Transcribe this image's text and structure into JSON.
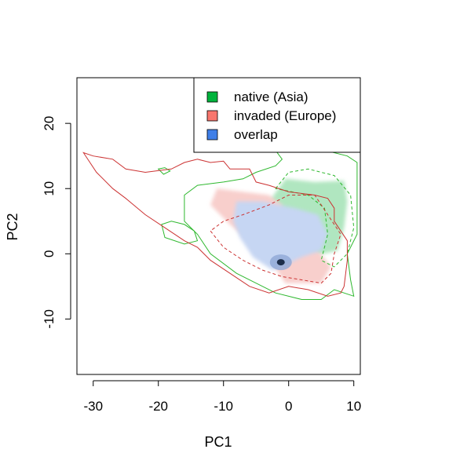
{
  "chart_data": {
    "type": "heatmap",
    "xlabel": "PC1",
    "ylabel": "PC2",
    "xlim": [
      -32.5,
      11
    ],
    "ylim": [
      -18.5,
      27
    ],
    "xticks": [
      -30,
      -20,
      -10,
      0,
      10
    ],
    "yticks": [
      -10,
      0,
      10,
      20
    ],
    "tick_labels_x": [
      "-30",
      "-20",
      "-10",
      "0",
      "10"
    ],
    "tick_labels_y": [
      "-10",
      "0",
      "10",
      "20"
    ],
    "legend": {
      "position": "top-right",
      "entries": [
        {
          "label": "native (Asia)",
          "color": "#00b33c"
        },
        {
          "label": "invaded (Europe)",
          "color": "#f8766d"
        },
        {
          "label": "overlap",
          "color": "#3f7fe8"
        }
      ]
    },
    "colors": {
      "native_fill": "#b0e6c0",
      "invaded_fill": "#f8cfcc",
      "overlap_fill": "#c6d6f3",
      "overlap_dense": "#1c2d4a",
      "native_line": "#2eb82e",
      "invaded_line": "#cc3333"
    },
    "regions": {
      "native_only": [
        [
          -0.5,
          11.5
        ],
        [
          4,
          11
        ],
        [
          8.5,
          11.2
        ],
        [
          9,
          8
        ],
        [
          8.5,
          4
        ],
        [
          7.5,
          0.5
        ],
        [
          3,
          -0.5
        ],
        [
          -1,
          3
        ],
        [
          -1.5,
          6.5
        ],
        [
          -3,
          8
        ]
      ],
      "invaded_only": [
        [
          -11,
          10
        ],
        [
          -7,
          9.5
        ],
        [
          -3,
          9
        ],
        [
          -1,
          7.5
        ],
        [
          -1.5,
          3
        ],
        [
          -3,
          -0.8
        ],
        [
          -0.5,
          -4.5
        ],
        [
          5,
          -4.5
        ],
        [
          6.5,
          -2
        ],
        [
          4.5,
          0.5
        ],
        [
          0,
          1
        ],
        [
          -6,
          2
        ],
        [
          -9,
          4.5
        ],
        [
          -12,
          7.5
        ]
      ],
      "overlap": [
        [
          -8,
          8
        ],
        [
          -4,
          8
        ],
        [
          1,
          7
        ],
        [
          4.5,
          6
        ],
        [
          6,
          3
        ],
        [
          5,
          0.5
        ],
        [
          2,
          -0.5
        ],
        [
          0,
          -1.5
        ],
        [
          -2.5,
          -2.5
        ],
        [
          -5.5,
          -0.5
        ],
        [
          -7.5,
          2.5
        ],
        [
          -8.5,
          5
        ]
      ],
      "overlap_peak": {
        "x": -1.2,
        "y": -1.3
      }
    },
    "series": [
      {
        "group": "native (Asia)",
        "style": "solid",
        "points": [
          [
            -16,
            9
          ],
          [
            -14,
            10.5
          ],
          [
            -10,
            11
          ],
          [
            -7,
            11.5
          ],
          [
            -5,
            12.5
          ],
          [
            -2,
            13.5
          ],
          [
            -1,
            14.5
          ],
          [
            -2.5,
            16.5
          ],
          [
            -1,
            17.5
          ],
          [
            5,
            16
          ],
          [
            9,
            15
          ],
          [
            10.5,
            14
          ],
          [
            10.5,
            3
          ],
          [
            9,
            0
          ],
          [
            9.5,
            -4
          ],
          [
            10,
            -6.5
          ],
          [
            7,
            -5.5
          ],
          [
            5,
            -7
          ],
          [
            2,
            -7
          ],
          [
            -2,
            -6
          ],
          [
            -5,
            -4.5
          ],
          [
            -8,
            -3
          ],
          [
            -12,
            0
          ],
          [
            -14,
            3
          ],
          [
            -16,
            5
          ],
          [
            -16,
            9
          ]
        ]
      },
      {
        "group": "native (Asia)",
        "style": "solid",
        "note_free": true,
        "points": [
          [
            -19.5,
            4.5
          ],
          [
            -18,
            5
          ],
          [
            -16,
            4.5
          ],
          [
            -14.5,
            3.5
          ],
          [
            -14,
            2
          ],
          [
            -16,
            1.5
          ],
          [
            -19,
            2.5
          ],
          [
            -19.5,
            4.5
          ]
        ]
      },
      {
        "group": "native (Asia)",
        "style": "solid",
        "points": [
          [
            -20,
            13
          ],
          [
            -19,
            13.2
          ],
          [
            -18.2,
            12.7
          ],
          [
            -19.2,
            12.2
          ],
          [
            -20,
            13
          ]
        ]
      },
      {
        "group": "native (Asia)",
        "style": "dashed",
        "points": [
          [
            -2,
            10
          ],
          [
            0,
            12.5
          ],
          [
            3,
            13
          ],
          [
            7,
            12
          ],
          [
            9.5,
            9
          ],
          [
            10,
            4
          ],
          [
            9,
            0
          ],
          [
            7,
            -2
          ],
          [
            5,
            -1
          ],
          [
            6,
            3
          ],
          [
            5.5,
            7
          ],
          [
            3,
            9
          ],
          [
            -2,
            10
          ]
        ]
      },
      {
        "group": "invaded (Europe)",
        "style": "solid",
        "points": [
          [
            -31.5,
            15.5
          ],
          [
            -30,
            15
          ],
          [
            -27,
            14.5
          ],
          [
            -25,
            13
          ],
          [
            -22,
            12.5
          ],
          [
            -18,
            13
          ],
          [
            -16,
            14
          ],
          [
            -14,
            14.5
          ],
          [
            -12,
            14
          ],
          [
            -10,
            14.2
          ],
          [
            -9,
            13
          ],
          [
            -6,
            13
          ],
          [
            -5,
            11
          ],
          [
            -3,
            10.5
          ],
          [
            0,
            9.5
          ],
          [
            4,
            9
          ],
          [
            6,
            8.5
          ],
          [
            7,
            7
          ],
          [
            7,
            5
          ],
          [
            8,
            3.5
          ],
          [
            9,
            2
          ],
          [
            9,
            -1
          ],
          [
            8.5,
            -5
          ],
          [
            8,
            -6
          ],
          [
            6,
            -6.5
          ],
          [
            3,
            -5.5
          ],
          [
            0,
            -5
          ],
          [
            -3,
            -6
          ],
          [
            -6,
            -5
          ],
          [
            -9,
            -3
          ],
          [
            -12,
            -1
          ],
          [
            -14,
            1
          ],
          [
            -16,
            2
          ],
          [
            -19,
            4
          ],
          [
            -22,
            6
          ],
          [
            -25,
            8.5
          ],
          [
            -27,
            10
          ],
          [
            -29.5,
            12.5
          ],
          [
            -31.5,
            15.5
          ]
        ]
      },
      {
        "group": "invaded (Europe)",
        "style": "dashed",
        "points": [
          [
            -12,
            3.5
          ],
          [
            -10,
            1
          ],
          [
            -7,
            -1
          ],
          [
            -4,
            -2.5
          ],
          [
            -1,
            -3.5
          ],
          [
            2,
            -4
          ],
          [
            5,
            -4.5
          ],
          [
            6.5,
            -3
          ],
          [
            7,
            0
          ],
          [
            8,
            3
          ],
          [
            6,
            6
          ],
          [
            4,
            9
          ],
          [
            0,
            9
          ],
          [
            -3,
            7.5
          ],
          [
            -7,
            6
          ],
          [
            -10,
            5
          ],
          [
            -12,
            3.5
          ]
        ]
      }
    ]
  }
}
